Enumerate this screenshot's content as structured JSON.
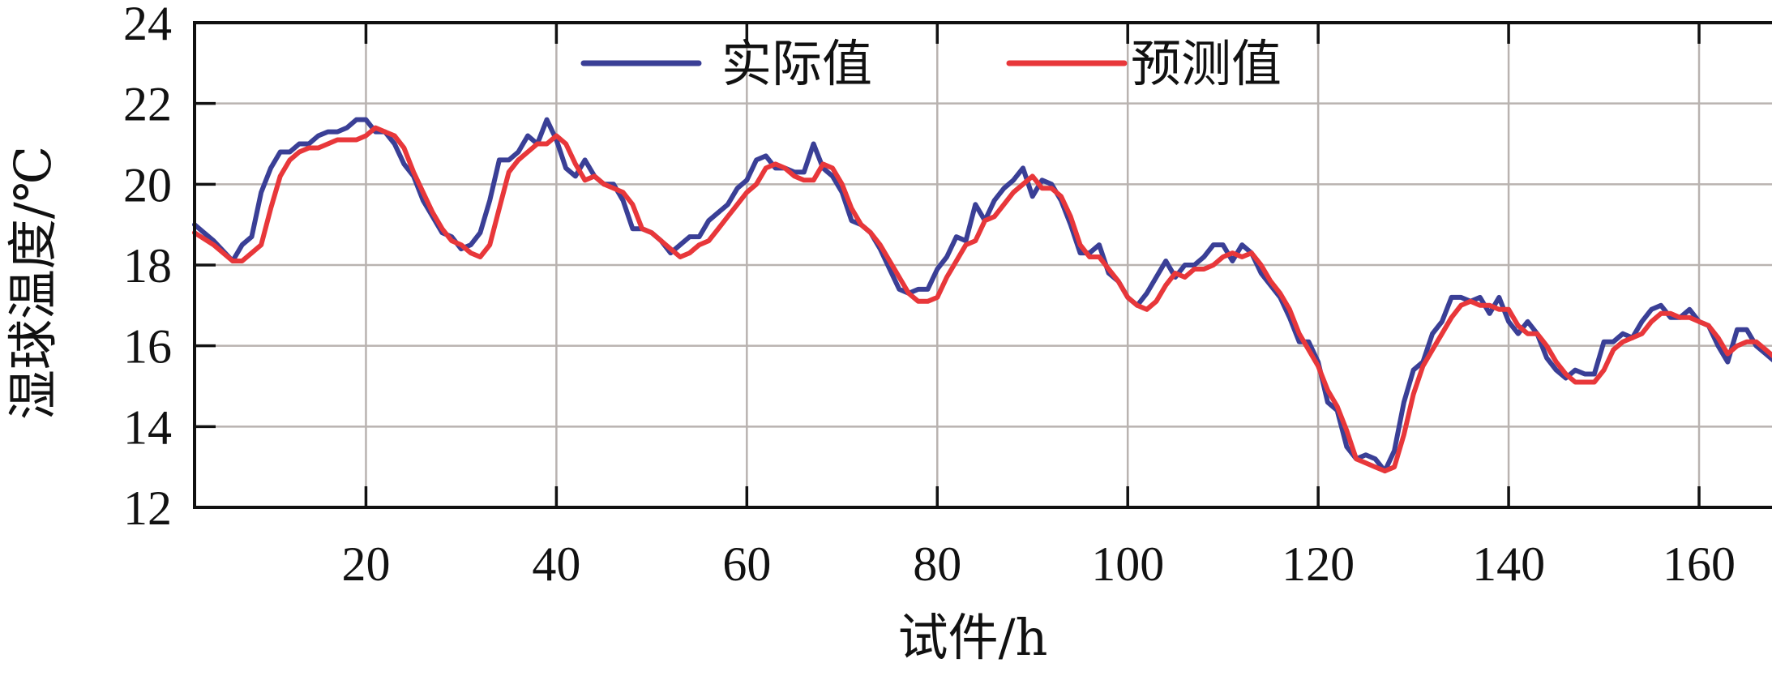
{
  "chart_data": {
    "type": "line",
    "xlabel": "试件/h",
    "ylabel": "湿球温度/℃",
    "xlim": [
      2,
      168
    ],
    "ylim": [
      12,
      24
    ],
    "x_ticks": [
      20,
      40,
      60,
      80,
      100,
      120,
      140,
      160
    ],
    "y_ticks": [
      12,
      14,
      16,
      18,
      20,
      22,
      24
    ],
    "grid": true,
    "legend_position": "top-center",
    "series": [
      {
        "name": "实际值",
        "color": "#3a3f96",
        "points": [
          [
            2,
            19.0
          ],
          [
            4,
            18.6
          ],
          [
            6,
            18.1
          ],
          [
            7,
            18.5
          ],
          [
            8,
            18.7
          ],
          [
            9,
            19.8
          ],
          [
            10,
            20.4
          ],
          [
            11,
            20.8
          ],
          [
            12,
            20.8
          ],
          [
            13,
            21.0
          ],
          [
            14,
            21.0
          ],
          [
            15,
            21.2
          ],
          [
            16,
            21.3
          ],
          [
            17,
            21.3
          ],
          [
            18,
            21.4
          ],
          [
            19,
            21.6
          ],
          [
            20,
            21.6
          ],
          [
            21,
            21.3
          ],
          [
            22,
            21.3
          ],
          [
            23,
            21.0
          ],
          [
            24,
            20.5
          ],
          [
            25,
            20.2
          ],
          [
            26,
            19.6
          ],
          [
            27,
            19.2
          ],
          [
            28,
            18.8
          ],
          [
            29,
            18.7
          ],
          [
            30,
            18.4
          ],
          [
            31,
            18.5
          ],
          [
            32,
            18.8
          ],
          [
            33,
            19.6
          ],
          [
            34,
            20.6
          ],
          [
            35,
            20.6
          ],
          [
            36,
            20.8
          ],
          [
            37,
            21.2
          ],
          [
            38,
            21.0
          ],
          [
            39,
            21.6
          ],
          [
            40,
            21.1
          ],
          [
            41,
            20.4
          ],
          [
            42,
            20.2
          ],
          [
            43,
            20.6
          ],
          [
            44,
            20.2
          ],
          [
            45,
            20.0
          ],
          [
            46,
            20.0
          ],
          [
            47,
            19.6
          ],
          [
            48,
            18.9
          ],
          [
            49,
            18.9
          ],
          [
            50,
            18.8
          ],
          [
            51,
            18.6
          ],
          [
            52,
            18.3
          ],
          [
            53,
            18.5
          ],
          [
            54,
            18.7
          ],
          [
            55,
            18.7
          ],
          [
            56,
            19.1
          ],
          [
            57,
            19.3
          ],
          [
            58,
            19.5
          ],
          [
            59,
            19.9
          ],
          [
            60,
            20.1
          ],
          [
            61,
            20.6
          ],
          [
            62,
            20.7
          ],
          [
            63,
            20.4
          ],
          [
            64,
            20.4
          ],
          [
            65,
            20.3
          ],
          [
            66,
            20.3
          ],
          [
            67,
            21.0
          ],
          [
            68,
            20.4
          ],
          [
            69,
            20.2
          ],
          [
            70,
            19.8
          ],
          [
            71,
            19.1
          ],
          [
            72,
            19.0
          ],
          [
            73,
            18.8
          ],
          [
            74,
            18.4
          ],
          [
            75,
            17.9
          ],
          [
            76,
            17.4
          ],
          [
            77,
            17.3
          ],
          [
            78,
            17.4
          ],
          [
            79,
            17.4
          ],
          [
            80,
            17.9
          ],
          [
            81,
            18.2
          ],
          [
            82,
            18.7
          ],
          [
            83,
            18.6
          ],
          [
            84,
            19.5
          ],
          [
            85,
            19.1
          ],
          [
            86,
            19.6
          ],
          [
            87,
            19.9
          ],
          [
            88,
            20.1
          ],
          [
            89,
            20.4
          ],
          [
            90,
            19.7
          ],
          [
            91,
            20.1
          ],
          [
            92,
            20.0
          ],
          [
            93,
            19.6
          ],
          [
            94,
            19.0
          ],
          [
            95,
            18.3
          ],
          [
            96,
            18.3
          ],
          [
            97,
            18.5
          ],
          [
            98,
            17.8
          ],
          [
            99,
            17.6
          ],
          [
            100,
            17.2
          ],
          [
            101,
            17.0
          ],
          [
            102,
            17.3
          ],
          [
            103,
            17.7
          ],
          [
            104,
            18.1
          ],
          [
            105,
            17.7
          ],
          [
            106,
            18.0
          ],
          [
            107,
            18.0
          ],
          [
            108,
            18.2
          ],
          [
            109,
            18.5
          ],
          [
            110,
            18.5
          ],
          [
            111,
            18.1
          ],
          [
            112,
            18.5
          ],
          [
            113,
            18.3
          ],
          [
            114,
            17.8
          ],
          [
            115,
            17.5
          ],
          [
            116,
            17.2
          ],
          [
            117,
            16.7
          ],
          [
            118,
            16.1
          ],
          [
            119,
            16.1
          ],
          [
            120,
            15.6
          ],
          [
            121,
            14.6
          ],
          [
            122,
            14.4
          ],
          [
            123,
            13.5
          ],
          [
            124,
            13.2
          ],
          [
            125,
            13.3
          ],
          [
            126,
            13.2
          ],
          [
            127,
            12.9
          ],
          [
            128,
            13.4
          ],
          [
            129,
            14.6
          ],
          [
            130,
            15.4
          ],
          [
            131,
            15.6
          ],
          [
            132,
            16.3
          ],
          [
            133,
            16.6
          ],
          [
            134,
            17.2
          ],
          [
            135,
            17.2
          ],
          [
            136,
            17.1
          ],
          [
            137,
            17.2
          ],
          [
            138,
            16.8
          ],
          [
            139,
            17.2
          ],
          [
            140,
            16.6
          ],
          [
            141,
            16.3
          ],
          [
            142,
            16.6
          ],
          [
            143,
            16.3
          ],
          [
            144,
            15.7
          ],
          [
            145,
            15.4
          ],
          [
            146,
            15.2
          ],
          [
            147,
            15.4
          ],
          [
            148,
            15.3
          ],
          [
            149,
            15.3
          ],
          [
            150,
            16.1
          ],
          [
            151,
            16.1
          ],
          [
            152,
            16.3
          ],
          [
            153,
            16.2
          ],
          [
            154,
            16.6
          ],
          [
            155,
            16.9
          ],
          [
            156,
            17.0
          ],
          [
            157,
            16.7
          ],
          [
            158,
            16.7
          ],
          [
            159,
            16.9
          ],
          [
            160,
            16.6
          ],
          [
            161,
            16.5
          ],
          [
            162,
            16.0
          ],
          [
            163,
            15.6
          ],
          [
            164,
            16.4
          ],
          [
            165,
            16.4
          ],
          [
            166,
            16.0
          ],
          [
            167,
            15.8
          ],
          [
            168,
            15.6
          ]
        ]
      },
      {
        "name": "预测值",
        "color": "#e8373a",
        "points": [
          [
            2,
            18.8
          ],
          [
            4,
            18.5
          ],
          [
            6,
            18.1
          ],
          [
            7,
            18.1
          ],
          [
            8,
            18.3
          ],
          [
            9,
            18.5
          ],
          [
            10,
            19.4
          ],
          [
            11,
            20.2
          ],
          [
            12,
            20.6
          ],
          [
            13,
            20.8
          ],
          [
            14,
            20.9
          ],
          [
            15,
            20.9
          ],
          [
            16,
            21.0
          ],
          [
            17,
            21.1
          ],
          [
            18,
            21.1
          ],
          [
            19,
            21.1
          ],
          [
            20,
            21.2
          ],
          [
            21,
            21.4
          ],
          [
            22,
            21.3
          ],
          [
            23,
            21.2
          ],
          [
            24,
            20.9
          ],
          [
            25,
            20.3
          ],
          [
            26,
            19.8
          ],
          [
            27,
            19.3
          ],
          [
            28,
            18.9
          ],
          [
            29,
            18.6
          ],
          [
            30,
            18.5
          ],
          [
            31,
            18.3
          ],
          [
            32,
            18.2
          ],
          [
            33,
            18.5
          ],
          [
            34,
            19.4
          ],
          [
            35,
            20.3
          ],
          [
            36,
            20.6
          ],
          [
            37,
            20.8
          ],
          [
            38,
            21.0
          ],
          [
            39,
            21.0
          ],
          [
            40,
            21.2
          ],
          [
            41,
            21.0
          ],
          [
            42,
            20.5
          ],
          [
            43,
            20.1
          ],
          [
            44,
            20.2
          ],
          [
            45,
            20.0
          ],
          [
            46,
            19.9
          ],
          [
            47,
            19.8
          ],
          [
            48,
            19.5
          ],
          [
            49,
            18.9
          ],
          [
            50,
            18.8
          ],
          [
            51,
            18.6
          ],
          [
            52,
            18.4
          ],
          [
            53,
            18.2
          ],
          [
            54,
            18.3
          ],
          [
            55,
            18.5
          ],
          [
            56,
            18.6
          ],
          [
            57,
            18.9
          ],
          [
            58,
            19.2
          ],
          [
            59,
            19.5
          ],
          [
            60,
            19.8
          ],
          [
            61,
            20.0
          ],
          [
            62,
            20.4
          ],
          [
            63,
            20.5
          ],
          [
            64,
            20.4
          ],
          [
            65,
            20.2
          ],
          [
            66,
            20.1
          ],
          [
            67,
            20.1
          ],
          [
            68,
            20.5
          ],
          [
            69,
            20.4
          ],
          [
            70,
            20.0
          ],
          [
            71,
            19.4
          ],
          [
            72,
            19.0
          ],
          [
            73,
            18.8
          ],
          [
            74,
            18.5
          ],
          [
            75,
            18.1
          ],
          [
            76,
            17.7
          ],
          [
            77,
            17.3
          ],
          [
            78,
            17.1
          ],
          [
            79,
            17.1
          ],
          [
            80,
            17.2
          ],
          [
            81,
            17.7
          ],
          [
            82,
            18.1
          ],
          [
            83,
            18.5
          ],
          [
            84,
            18.6
          ],
          [
            85,
            19.1
          ],
          [
            86,
            19.2
          ],
          [
            87,
            19.5
          ],
          [
            88,
            19.8
          ],
          [
            89,
            20.0
          ],
          [
            90,
            20.2
          ],
          [
            91,
            19.9
          ],
          [
            92,
            19.9
          ],
          [
            93,
            19.7
          ],
          [
            94,
            19.2
          ],
          [
            95,
            18.5
          ],
          [
            96,
            18.2
          ],
          [
            97,
            18.2
          ],
          [
            98,
            17.9
          ],
          [
            99,
            17.6
          ],
          [
            100,
            17.2
          ],
          [
            101,
            17.0
          ],
          [
            102,
            16.9
          ],
          [
            103,
            17.1
          ],
          [
            104,
            17.5
          ],
          [
            105,
            17.8
          ],
          [
            106,
            17.7
          ],
          [
            107,
            17.9
          ],
          [
            108,
            17.9
          ],
          [
            109,
            18.0
          ],
          [
            110,
            18.2
          ],
          [
            111,
            18.3
          ],
          [
            112,
            18.2
          ],
          [
            113,
            18.3
          ],
          [
            114,
            18.0
          ],
          [
            115,
            17.6
          ],
          [
            116,
            17.3
          ],
          [
            117,
            16.9
          ],
          [
            118,
            16.3
          ],
          [
            119,
            15.9
          ],
          [
            120,
            15.5
          ],
          [
            121,
            14.9
          ],
          [
            122,
            14.5
          ],
          [
            123,
            13.9
          ],
          [
            124,
            13.2
          ],
          [
            125,
            13.1
          ],
          [
            126,
            13.0
          ],
          [
            127,
            12.9
          ],
          [
            128,
            13.0
          ],
          [
            129,
            13.8
          ],
          [
            130,
            14.8
          ],
          [
            131,
            15.5
          ],
          [
            132,
            15.9
          ],
          [
            133,
            16.3
          ],
          [
            134,
            16.7
          ],
          [
            135,
            17.0
          ],
          [
            136,
            17.1
          ],
          [
            137,
            17.0
          ],
          [
            138,
            17.0
          ],
          [
            139,
            16.9
          ],
          [
            140,
            16.9
          ],
          [
            141,
            16.5
          ],
          [
            142,
            16.3
          ],
          [
            143,
            16.3
          ],
          [
            144,
            16.0
          ],
          [
            145,
            15.6
          ],
          [
            146,
            15.3
          ],
          [
            147,
            15.1
          ],
          [
            148,
            15.1
          ],
          [
            149,
            15.1
          ],
          [
            150,
            15.4
          ],
          [
            151,
            15.9
          ],
          [
            152,
            16.1
          ],
          [
            153,
            16.2
          ],
          [
            154,
            16.3
          ],
          [
            155,
            16.6
          ],
          [
            156,
            16.8
          ],
          [
            157,
            16.8
          ],
          [
            158,
            16.7
          ],
          [
            159,
            16.7
          ],
          [
            160,
            16.6
          ],
          [
            161,
            16.5
          ],
          [
            162,
            16.2
          ],
          [
            163,
            15.8
          ],
          [
            164,
            16.0
          ],
          [
            165,
            16.1
          ],
          [
            166,
            16.1
          ],
          [
            167,
            15.9
          ],
          [
            168,
            15.7
          ]
        ]
      }
    ]
  }
}
